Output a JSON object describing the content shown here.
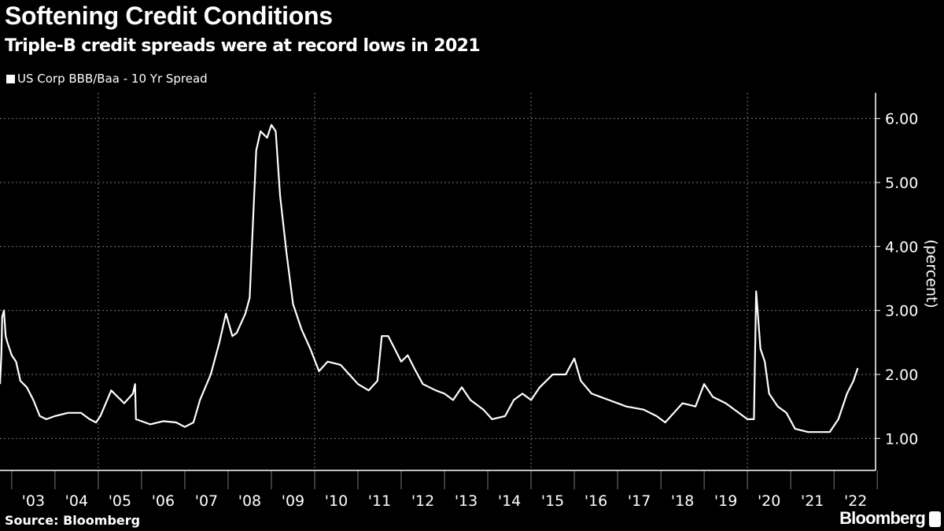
{
  "header": {
    "title": "Softening Credit Conditions",
    "subtitle": "Triple-B credit spreads were at record lows in 2021"
  },
  "footer": {
    "source": "Source: Bloomberg",
    "logo": "Bloomberg"
  },
  "colors": {
    "background": "#000000",
    "line": "#ffffff",
    "grid": "#777777"
  },
  "chart_data": {
    "type": "line",
    "title": "Softening Credit Conditions",
    "subtitle": "Triple-B credit spreads were at record lows in 2021",
    "xlabel": "",
    "ylabel": "(percent)",
    "ylim": [
      0.5,
      6.5
    ],
    "xlim": [
      2002.73,
      2022.96
    ],
    "yticks": [
      1,
      2,
      3,
      4,
      5,
      6
    ],
    "ytick_labels": [
      "1.00",
      "2.00",
      "3.00",
      "4.00",
      "5.00",
      "6.00"
    ],
    "xtick_labels": [
      "'03",
      "'04",
      "'05",
      "'06",
      "'07",
      "'08",
      "'09",
      "'10",
      "'11",
      "'12",
      "'13",
      "'14",
      "'15",
      "'16",
      "'17",
      "'18",
      "'19",
      "'20",
      "'21",
      "'22"
    ],
    "grid": true,
    "legend_position": "top-left",
    "series": [
      {
        "name": "US Corp BBB/Baa - 10 Yr Spread",
        "x": [
          2002.73,
          2002.76,
          2002.78,
          2002.82,
          2002.86,
          2002.9,
          2003.0,
          2003.1,
          2003.2,
          2003.35,
          2003.5,
          2003.65,
          2003.8,
          2004.0,
          2004.3,
          2004.6,
          2004.8,
          2004.95,
          2005.05,
          2005.3,
          2005.45,
          2005.6,
          2005.8,
          2005.85,
          2005.87,
          2006.2,
          2006.5,
          2006.8,
          2007.0,
          2007.2,
          2007.35,
          2007.6,
          2007.8,
          2007.95,
          2008.1,
          2008.2,
          2008.4,
          2008.5,
          2008.55,
          2008.65,
          2008.75,
          2008.9,
          2009.0,
          2009.1,
          2009.2,
          2009.35,
          2009.5,
          2009.7,
          2009.9,
          2010.1,
          2010.3,
          2010.6,
          2010.8,
          2011.0,
          2011.25,
          2011.45,
          2011.55,
          2011.7,
          2011.85,
          2012.0,
          2012.15,
          2012.3,
          2012.5,
          2012.8,
          2013.0,
          2013.2,
          2013.4,
          2013.6,
          2013.9,
          2014.1,
          2014.4,
          2014.6,
          2014.8,
          2015.0,
          2015.2,
          2015.5,
          2015.8,
          2016.0,
          2016.15,
          2016.4,
          2016.8,
          2017.2,
          2017.6,
          2017.9,
          2018.1,
          2018.3,
          2018.5,
          2018.8,
          2019.0,
          2019.2,
          2019.5,
          2019.8,
          2020.0,
          2020.15,
          2020.2,
          2020.3,
          2020.4,
          2020.5,
          2020.7,
          2020.9,
          2021.1,
          2021.4,
          2021.7,
          2021.9,
          2022.1,
          2022.3,
          2022.45,
          2022.55
        ],
        "values": [
          1.85,
          2.3,
          2.9,
          3.0,
          2.6,
          2.5,
          2.3,
          2.2,
          1.9,
          1.8,
          1.6,
          1.35,
          1.3,
          1.35,
          1.4,
          1.4,
          1.3,
          1.25,
          1.35,
          1.75,
          1.65,
          1.55,
          1.7,
          1.85,
          1.3,
          1.22,
          1.27,
          1.25,
          1.18,
          1.25,
          1.6,
          2.0,
          2.5,
          2.95,
          2.6,
          2.65,
          2.95,
          3.2,
          4.0,
          5.5,
          5.8,
          5.7,
          5.9,
          5.8,
          4.8,
          3.9,
          3.1,
          2.7,
          2.4,
          2.05,
          2.2,
          2.15,
          2.0,
          1.85,
          1.75,
          1.9,
          2.6,
          2.6,
          2.4,
          2.2,
          2.3,
          2.1,
          1.85,
          1.75,
          1.7,
          1.6,
          1.8,
          1.6,
          1.45,
          1.3,
          1.35,
          1.6,
          1.7,
          1.6,
          1.8,
          2.0,
          2.0,
          2.25,
          1.9,
          1.7,
          1.6,
          1.5,
          1.45,
          1.35,
          1.25,
          1.4,
          1.55,
          1.5,
          1.85,
          1.65,
          1.55,
          1.4,
          1.3,
          1.3,
          3.3,
          2.4,
          2.2,
          1.7,
          1.5,
          1.4,
          1.15,
          1.1,
          1.1,
          1.1,
          1.3,
          1.7,
          1.9,
          2.1
        ]
      }
    ]
  }
}
